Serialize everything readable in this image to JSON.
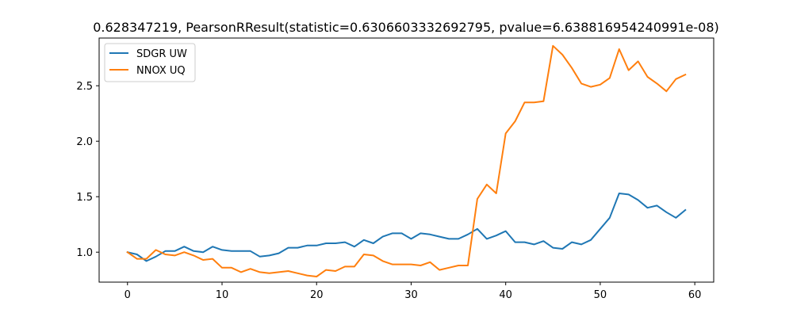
{
  "chart_data": {
    "type": "line",
    "title": "0.628347219, PearsonRResult(statistic=0.6306603332692795, pvalue=6.638816954240991e-08)",
    "xlabel": "",
    "ylabel": "",
    "xlim": [
      -3,
      62
    ],
    "ylim": [
      0.73,
      2.93
    ],
    "xticks": [
      0,
      10,
      20,
      30,
      40,
      50,
      60
    ],
    "yticks": [
      1.0,
      1.5,
      2.0,
      2.5
    ],
    "ytick_labels": [
      "1.0",
      "1.5",
      "2.0",
      "2.5"
    ],
    "grid": false,
    "legend_position": "upper left",
    "series": [
      {
        "name": "SDGR UW",
        "color": "#1f77b4",
        "values": [
          1.0,
          0.98,
          0.92,
          0.96,
          1.01,
          1.01,
          1.05,
          1.01,
          1.0,
          1.05,
          1.02,
          1.01,
          1.01,
          1.01,
          0.96,
          0.97,
          0.99,
          1.04,
          1.04,
          1.06,
          1.06,
          1.08,
          1.08,
          1.09,
          1.05,
          1.11,
          1.08,
          1.14,
          1.17,
          1.17,
          1.12,
          1.17,
          1.16,
          1.14,
          1.12,
          1.12,
          1.16,
          1.21,
          1.12,
          1.15,
          1.19,
          1.09,
          1.09,
          1.07,
          1.1,
          1.04,
          1.03,
          1.09,
          1.07,
          1.11,
          1.21,
          1.31,
          1.53,
          1.52,
          1.47,
          1.4,
          1.42,
          1.36,
          1.31,
          1.38
        ]
      },
      {
        "name": "NNOX UQ",
        "color": "#ff7f0e",
        "values": [
          1.0,
          0.94,
          0.94,
          1.02,
          0.98,
          0.97,
          1.0,
          0.97,
          0.93,
          0.94,
          0.86,
          0.86,
          0.82,
          0.85,
          0.82,
          0.81,
          0.82,
          0.83,
          0.81,
          0.79,
          0.78,
          0.84,
          0.83,
          0.87,
          0.87,
          0.98,
          0.97,
          0.92,
          0.89,
          0.89,
          0.89,
          0.88,
          0.91,
          0.84,
          0.86,
          0.88,
          0.88,
          1.48,
          1.61,
          1.53,
          2.07,
          2.18,
          2.35,
          2.35,
          2.36,
          2.86,
          2.78,
          2.66,
          2.52,
          2.49,
          2.51,
          2.57,
          2.83,
          2.64,
          2.72,
          2.58,
          2.52,
          2.45,
          2.56,
          2.6
        ]
      }
    ]
  }
}
